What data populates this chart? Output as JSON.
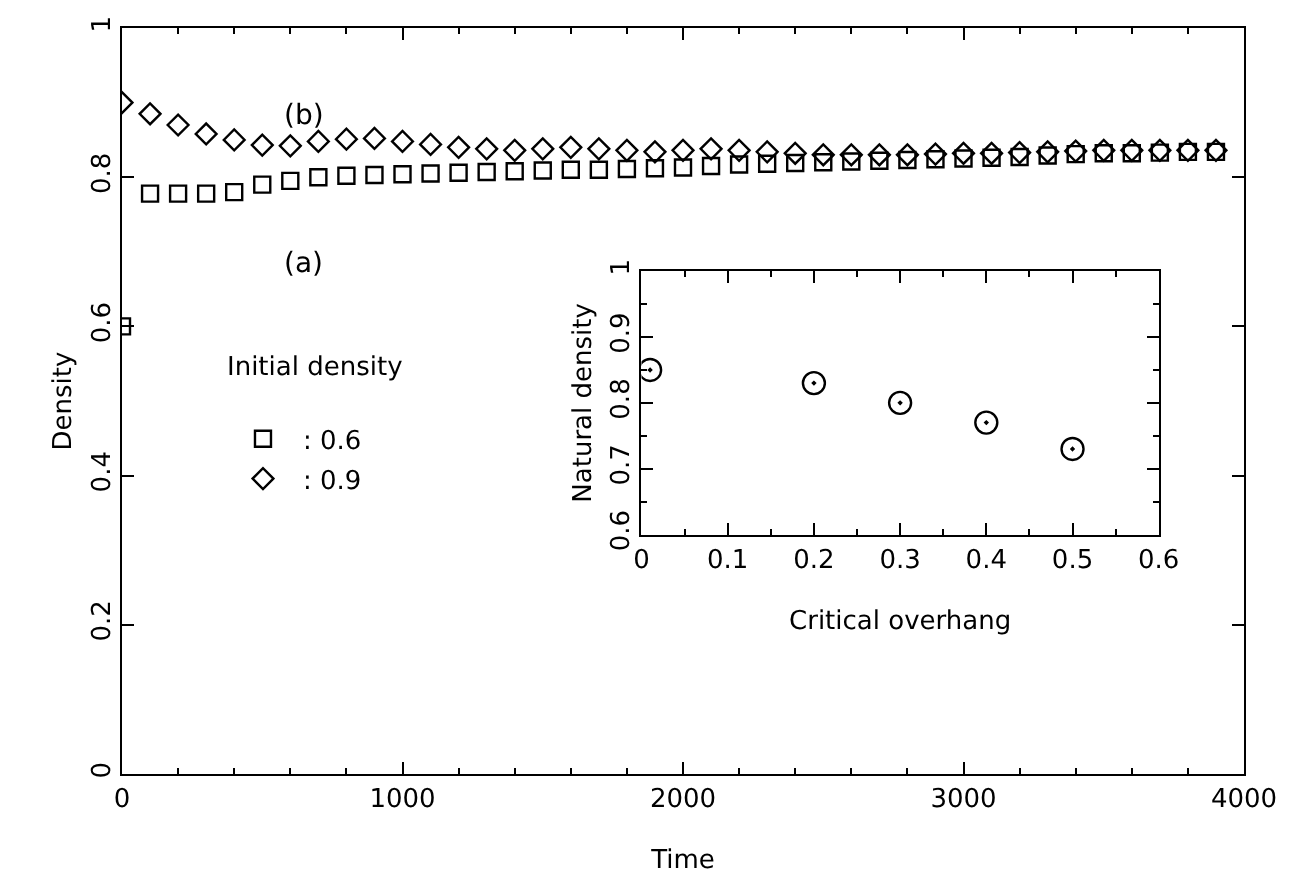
{
  "chart_data": [
    {
      "type": "scatter",
      "xlabel": "Time",
      "ylabel": "Density",
      "legend_title": "Initial density",
      "legend": "left",
      "xlim": [
        0,
        4000
      ],
      "xticks": [
        0,
        1000,
        2000,
        3000,
        4000
      ],
      "ylim": [
        0,
        1
      ],
      "yticks": [
        0,
        0.2,
        0.4,
        0.6,
        0.8,
        1
      ],
      "x": [
        0,
        100,
        200,
        300,
        400,
        500,
        600,
        700,
        800,
        900,
        1000,
        1100,
        1200,
        1300,
        1400,
        1500,
        1600,
        1700,
        1800,
        1900,
        2000,
        2100,
        2200,
        2300,
        2400,
        2500,
        2600,
        2700,
        2800,
        2900,
        3000,
        3100,
        3200,
        3300,
        3400,
        3500,
        3600,
        3700,
        3800,
        3900
      ],
      "series": [
        {
          "name": ": 0.6",
          "color": "#000000",
          "marker": "square",
          "values": [
            0.6,
            0.778,
            0.778,
            0.778,
            0.78,
            0.79,
            0.795,
            0.8,
            0.802,
            0.803,
            0.804,
            0.805,
            0.806,
            0.807,
            0.808,
            0.809,
            0.81,
            0.81,
            0.811,
            0.812,
            0.813,
            0.815,
            0.817,
            0.818,
            0.819,
            0.82,
            0.821,
            0.822,
            0.823,
            0.824,
            0.825,
            0.826,
            0.827,
            0.829,
            0.831,
            0.832,
            0.832,
            0.833,
            0.834,
            0.834
          ]
        },
        {
          "name": ": 0.9",
          "color": "#000000",
          "marker": "diamond",
          "values": [
            0.9,
            0.885,
            0.87,
            0.858,
            0.85,
            0.843,
            0.842,
            0.848,
            0.851,
            0.852,
            0.848,
            0.844,
            0.84,
            0.838,
            0.836,
            0.838,
            0.84,
            0.838,
            0.836,
            0.834,
            0.836,
            0.838,
            0.836,
            0.834,
            0.832,
            0.83,
            0.83,
            0.83,
            0.83,
            0.831,
            0.832,
            0.832,
            0.833,
            0.834,
            0.835,
            0.836,
            0.836,
            0.836,
            0.836,
            0.836
          ]
        }
      ],
      "annotations": [
        "(b)",
        "(a)"
      ]
    },
    {
      "type": "scatter",
      "xlabel": "Critical overhang",
      "ylabel": "Natural density",
      "marker": "circle",
      "xlim": [
        0,
        0.6
      ],
      "xticks": [
        0,
        0.1,
        0.2,
        0.3,
        0.4,
        0.5,
        0.6
      ],
      "ylim": [
        0.6,
        1
      ],
      "yticks": [
        0.6,
        0.7,
        0.8,
        0.9,
        1
      ],
      "x": [
        0.01,
        0.2,
        0.3,
        0.4,
        0.5
      ],
      "series": [
        {
          "color": "#000000",
          "values": [
            0.85,
            0.83,
            0.8,
            0.77,
            0.73
          ]
        }
      ]
    }
  ]
}
